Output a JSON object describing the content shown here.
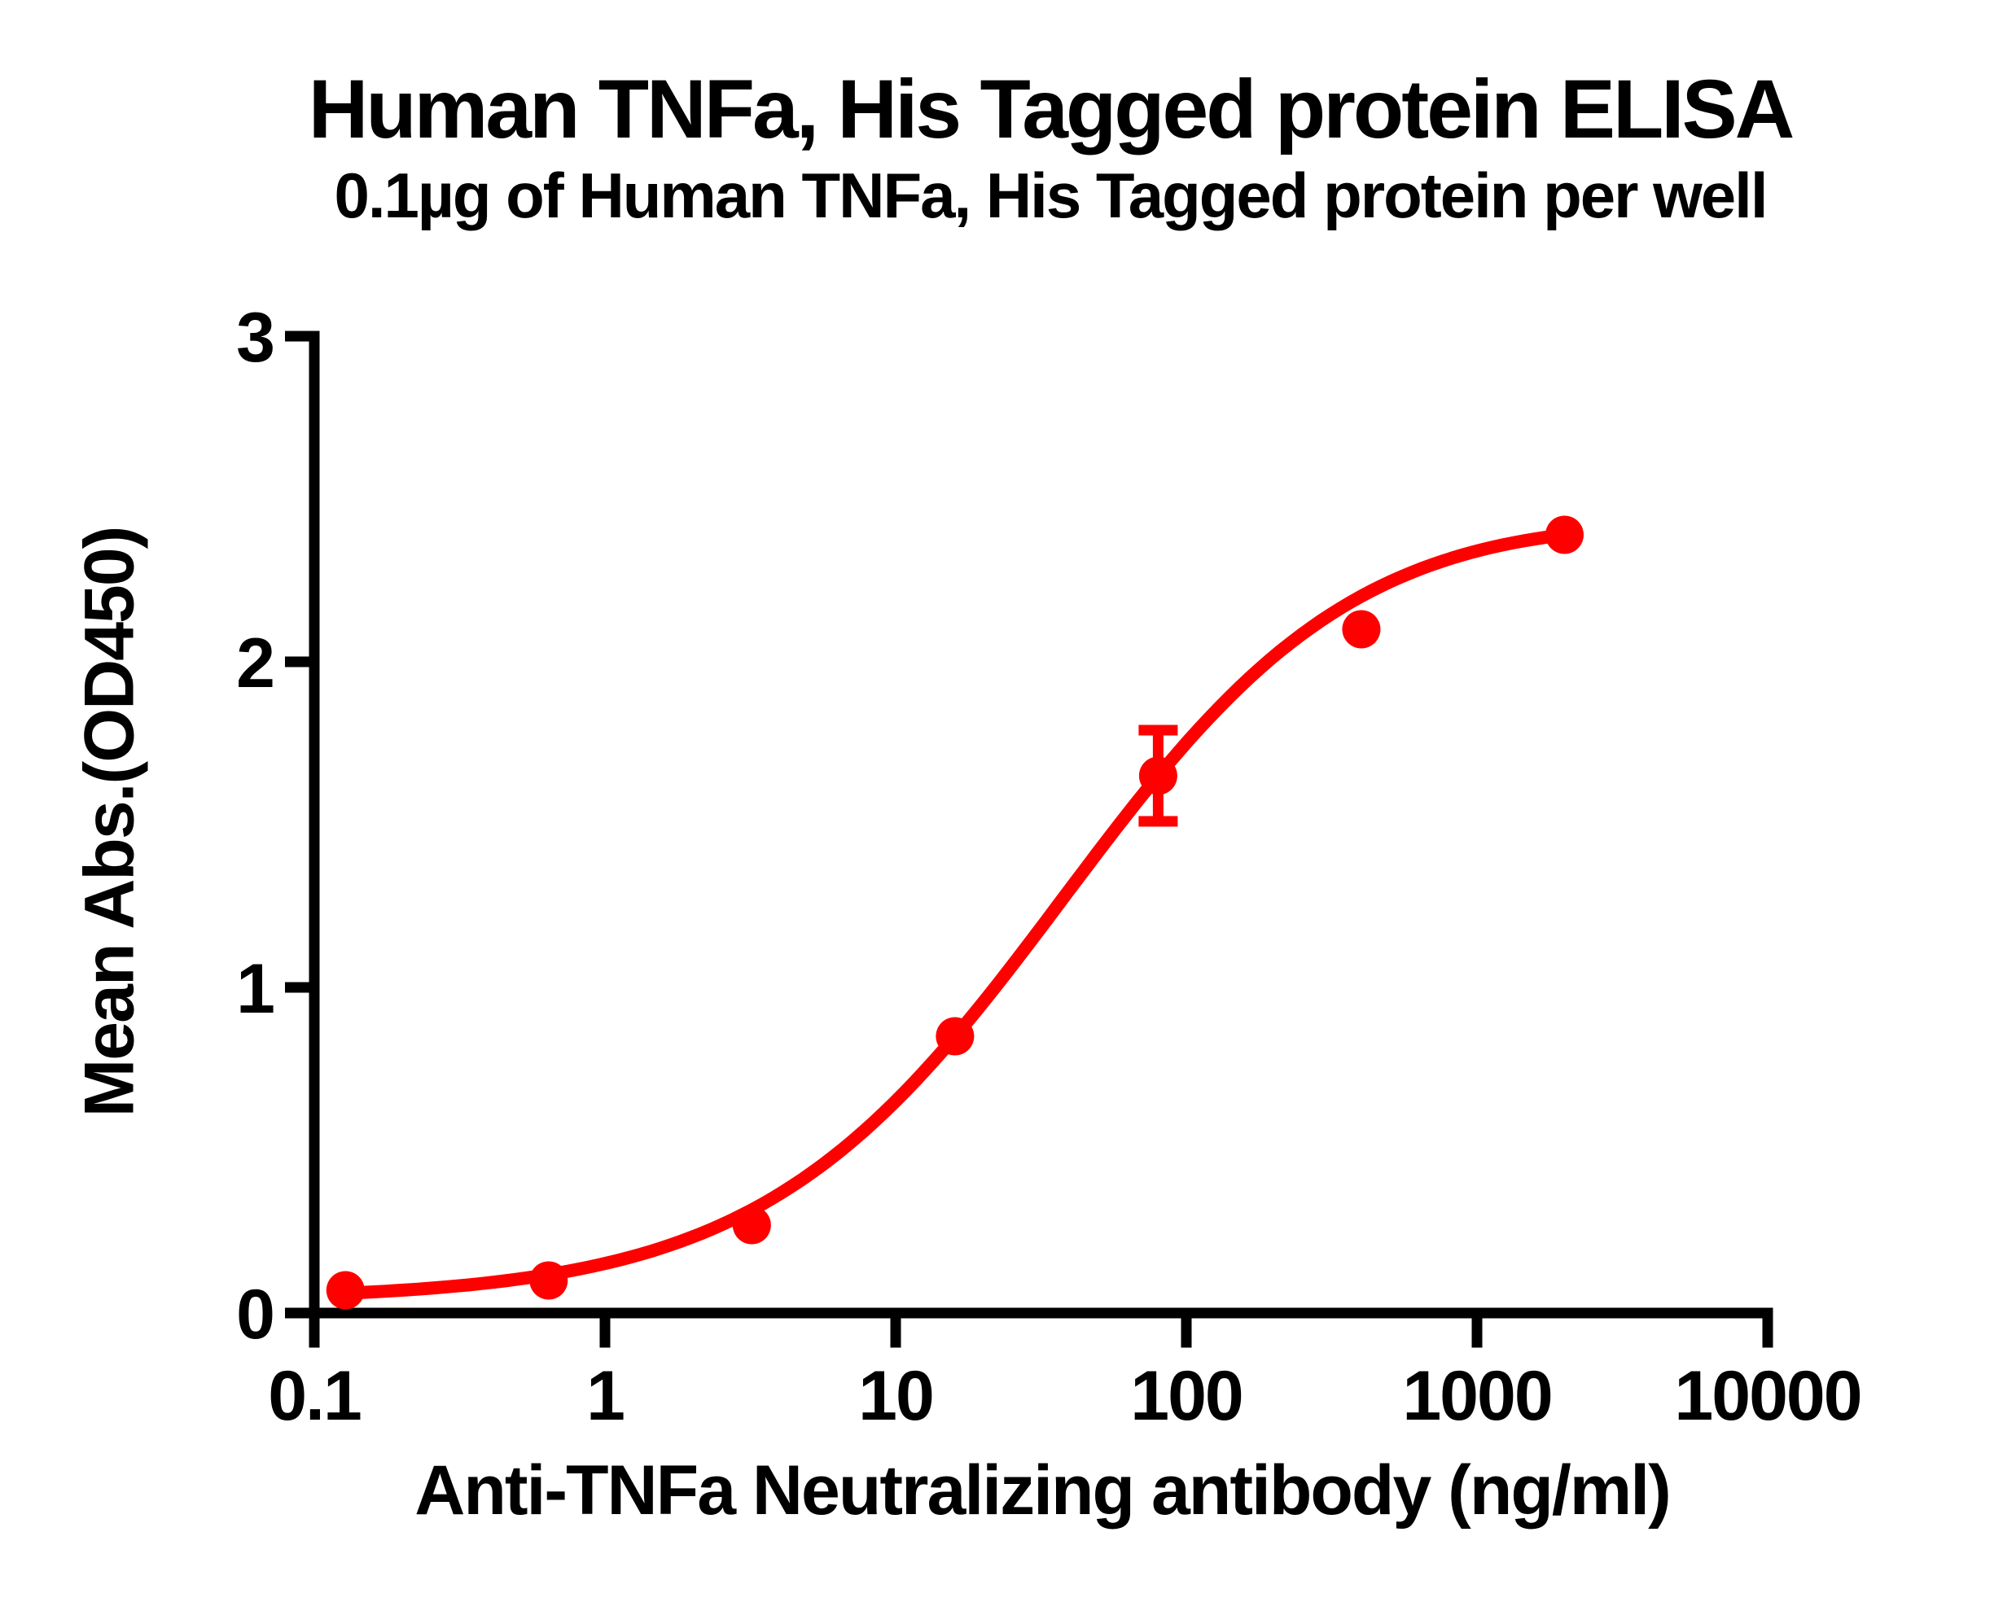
{
  "figure": {
    "background": "#ffffff"
  },
  "chart_data": {
    "type": "scatter",
    "title": "Human TNFa, His Tagged protein ELISA",
    "subtitle": "0.1µg of Human TNFa, His Tagged protein per well",
    "xlabel": "Anti-TNFa Neutralizing antibody (ng/ml)",
    "ylabel": "Mean Abs.(OD450)",
    "x_scale": "log10",
    "xlim": [
      0.1,
      10000
    ],
    "ylim": [
      0,
      3
    ],
    "grid": false,
    "legend": "none",
    "axis_color": "#000000",
    "x_ticks": [
      {
        "v": 0.1,
        "label": "0.1"
      },
      {
        "v": 1,
        "label": "1"
      },
      {
        "v": 10,
        "label": "10"
      },
      {
        "v": 100,
        "label": "100"
      },
      {
        "v": 1000,
        "label": "1000"
      },
      {
        "v": 10000,
        "label": "10000"
      }
    ],
    "y_ticks": [
      {
        "v": 0,
        "label": "0"
      },
      {
        "v": 1,
        "label": "1"
      },
      {
        "v": 2,
        "label": "2"
      },
      {
        "v": 3,
        "label": "3"
      }
    ],
    "series": [
      {
        "name": "Human TNFa, His Tagged protein",
        "color": "#ff0000",
        "marker": "circle",
        "points": [
          {
            "x": 0.128,
            "y": 0.07,
            "sem": 0
          },
          {
            "x": 0.64,
            "y": 0.1,
            "sem": 0
          },
          {
            "x": 3.2,
            "y": 0.27,
            "sem": 0
          },
          {
            "x": 16,
            "y": 0.85,
            "sem": 0
          },
          {
            "x": 80,
            "y": 1.65,
            "sem": 0.14
          },
          {
            "x": 400,
            "y": 2.1,
            "sem": 0
          },
          {
            "x": 2000,
            "y": 2.39,
            "sem": 0
          }
        ],
        "fit": {
          "model": "4PL",
          "bottom": 0.04,
          "top": 2.5,
          "ec50": 37.4,
          "hill": 0.84
        }
      }
    ]
  }
}
